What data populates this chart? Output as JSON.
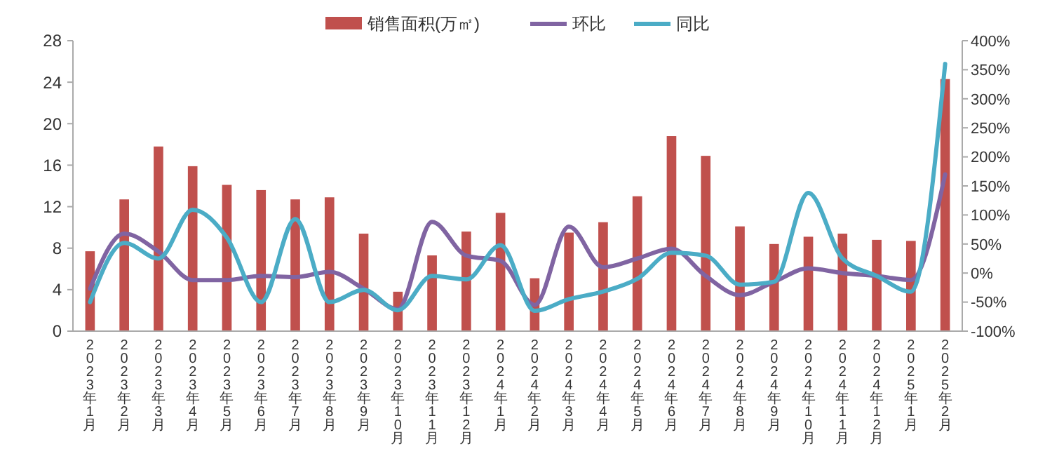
{
  "chart_data": {
    "type": "bar",
    "categories": [
      "2023年1月",
      "2023年2月",
      "2023年3月",
      "2023年4月",
      "2023年5月",
      "2023年6月",
      "2023年7月",
      "2023年8月",
      "2023年9月",
      "2023年10月",
      "2023年11月",
      "2023年12月",
      "2024年1月",
      "2024年2月",
      "2024年3月",
      "2024年4月",
      "2024年5月",
      "2024年6月",
      "2024年7月",
      "2024年8月",
      "2024年9月",
      "2024年10月",
      "2024年11月",
      "2024年12月",
      "2025年1月",
      "2025年2月"
    ],
    "series": [
      {
        "name": "销售面积(万㎡)",
        "color": "#c0504d",
        "values": [
          7.7,
          12.7,
          17.8,
          15.9,
          14.1,
          13.6,
          12.7,
          12.9,
          9.4,
          3.8,
          7.3,
          9.6,
          11.4,
          5.1,
          9.5,
          10.5,
          13.0,
          18.8,
          16.9,
          10.1,
          8.4,
          9.1,
          9.4,
          8.8,
          8.7,
          24.3
        ]
      },
      {
        "name": "环比",
        "type": "line",
        "axis": "y2",
        "color": "#8064a2",
        "values": [
          -27,
          68,
          37,
          -12,
          -12,
          -5,
          -7,
          2,
          -27,
          -62,
          88,
          30,
          21,
          -55,
          80,
          10,
          25,
          42,
          -5,
          -38,
          -15,
          8,
          0,
          -5,
          -12,
          170
        ]
      },
      {
        "name": "同比",
        "type": "line",
        "axis": "y2",
        "color": "#4bacc6",
        "values": [
          -50,
          52,
          25,
          109,
          61,
          -50,
          93,
          -50,
          -29,
          -64,
          -5,
          -11,
          48,
          -65,
          -45,
          -32,
          -10,
          35,
          30,
          -20,
          -15,
          138,
          25,
          -5,
          -32,
          360
        ]
      }
    ],
    "ylim": [
      0,
      28
    ],
    "yticks": [
      0,
      4,
      8,
      12,
      16,
      20,
      24,
      28
    ],
    "y2lim": [
      -100,
      400
    ],
    "y2ticks": [
      {
        "value": -100,
        "label": "-100%"
      },
      {
        "value": -50,
        "label": "-50%"
      },
      {
        "value": 0,
        "label": "0%"
      },
      {
        "value": 50,
        "label": "50%"
      },
      {
        "value": 100,
        "label": "100%"
      },
      {
        "value": 150,
        "label": "150%"
      },
      {
        "value": 200,
        "label": "200%"
      },
      {
        "value": 250,
        "label": "250%"
      },
      {
        "value": 300,
        "label": "300%"
      },
      {
        "value": 350,
        "label": "350%"
      },
      {
        "value": 400,
        "label": "400%"
      }
    ],
    "legend": "top",
    "grid": false,
    "marker": "none",
    "line_style": "solid"
  }
}
